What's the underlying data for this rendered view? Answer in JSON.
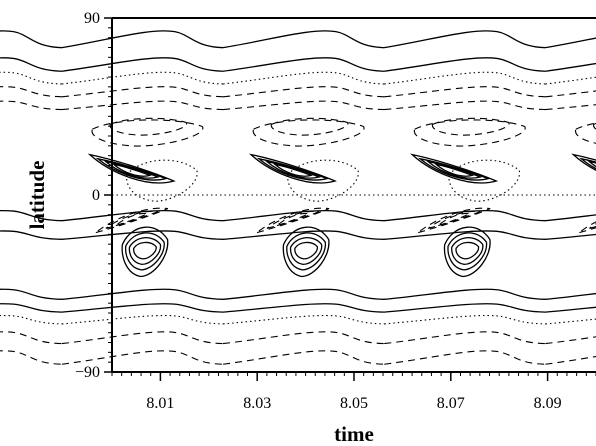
{
  "chart_data": {
    "type": "contour",
    "xlabel": "time",
    "ylabel": "latitude",
    "xlim": [
      8.0,
      8.1
    ],
    "ylim": [
      -90,
      90
    ],
    "x_ticks": [
      8.01,
      8.03,
      8.05,
      8.07,
      8.09
    ],
    "x_tick_labels": [
      "8.01",
      "8.03",
      "8.05",
      "8.07",
      "8.09"
    ],
    "y_ticks": [
      -90,
      0,
      90
    ],
    "y_tick_labels": [
      "-90",
      "0",
      "90"
    ],
    "period": 0.0333,
    "line_styles": [
      "solid",
      "dashed",
      "dotted"
    ],
    "grid": false,
    "legend": "none"
  }
}
